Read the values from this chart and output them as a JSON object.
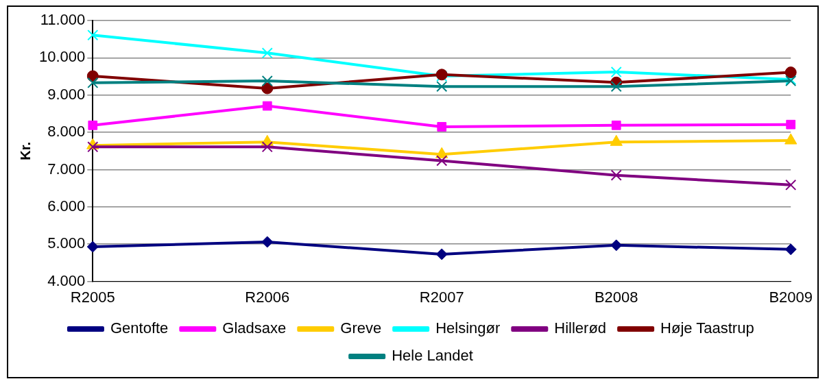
{
  "chart_data": {
    "type": "line",
    "ylabel": "Kr.",
    "categories": [
      "R2005",
      "R2006",
      "R2007",
      "B2008",
      "B2009"
    ],
    "ylim": [
      4000,
      11000
    ],
    "yticks": [
      {
        "value": 4000,
        "label": "4.000"
      },
      {
        "value": 5000,
        "label": "5.000"
      },
      {
        "value": 6000,
        "label": "6.000"
      },
      {
        "value": 7000,
        "label": "7.000"
      },
      {
        "value": 8000,
        "label": "8.000"
      },
      {
        "value": 9000,
        "label": "9.000"
      },
      {
        "value": 10000,
        "label": "10.000"
      },
      {
        "value": 11000,
        "label": "11.000"
      }
    ],
    "grid": "y",
    "legend": "bottom",
    "series": [
      {
        "name": "Gentofte",
        "color": "#000080",
        "marker": "diamond",
        "values": [
          4930,
          5060,
          4730,
          4970,
          4860
        ]
      },
      {
        "name": "Gladsaxe",
        "color": "#ff00ff",
        "marker": "square",
        "values": [
          8190,
          8710,
          8150,
          8190,
          8210
        ]
      },
      {
        "name": "Greve",
        "color": "#ffcc00",
        "marker": "triangle",
        "values": [
          7650,
          7740,
          7410,
          7740,
          7780
        ]
      },
      {
        "name": "Helsingør",
        "color": "#00ffff",
        "marker": "cross",
        "values": [
          10610,
          10130,
          9510,
          9620,
          9420
        ]
      },
      {
        "name": "Hillerød",
        "color": "#800080",
        "marker": "cross",
        "values": [
          7610,
          7610,
          7240,
          6850,
          6590
        ]
      },
      {
        "name": "Høje Taastrup",
        "color": "#800000",
        "marker": "circle",
        "values": [
          9510,
          9180,
          9550,
          9340,
          9610
        ]
      },
      {
        "name": "Hele Landet",
        "color": "#008080",
        "marker": "cross",
        "values": [
          9330,
          9380,
          9230,
          9230,
          9380
        ]
      }
    ]
  }
}
